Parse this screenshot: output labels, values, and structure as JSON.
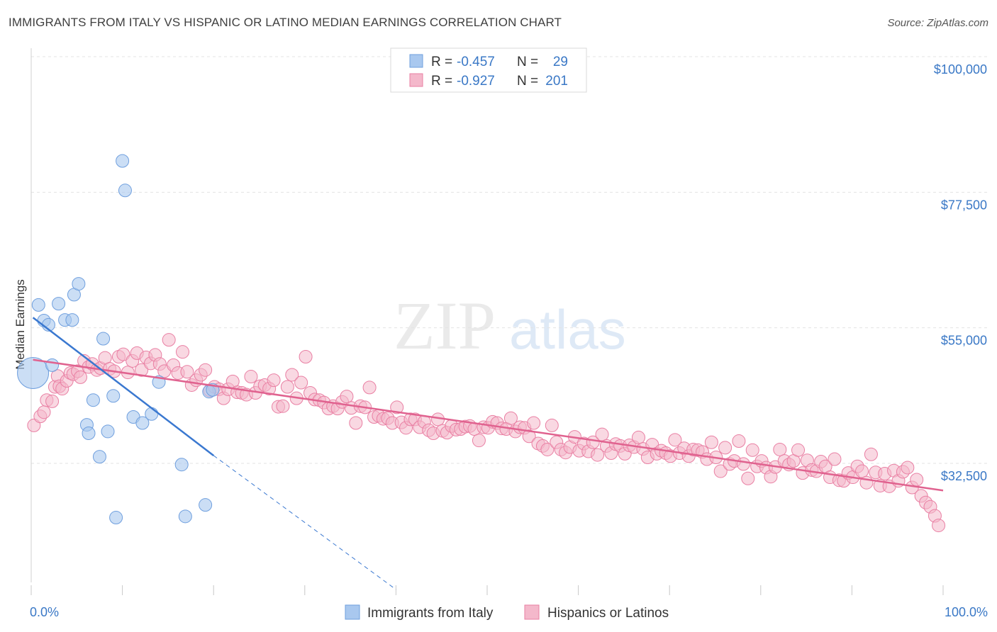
{
  "title": "IMMIGRANTS FROM ITALY VS HISPANIC OR LATINO MEDIAN EARNINGS CORRELATION CHART",
  "source": "Source: ZipAtlas.com",
  "watermark": {
    "zip": "ZIP",
    "atlas": "atlas"
  },
  "colors": {
    "blue": "#a9c8ef",
    "blue_stroke": "#6f9fde",
    "blue_line": "#3a78d0",
    "pink": "#f4b8cb",
    "pink_stroke": "#e97fa3",
    "pink_line": "#e0628f",
    "axis_text": "#3a78c6",
    "grid": "#e3e3e3"
  },
  "legend": {
    "rows": [
      {
        "r_label": "R =",
        "r_value": "-0.457",
        "n_label": "N =",
        "n_value": "29"
      },
      {
        "r_label": "R =",
        "r_value": "-0.927",
        "n_label": "N =",
        "n_value": "201"
      }
    ]
  },
  "chart_data": {
    "type": "scatter",
    "xlabel": "",
    "ylabel": "Median Earnings",
    "xlim": [
      0,
      100
    ],
    "ylim": [
      17000,
      104000
    ],
    "x_tick_labels": [
      "0.0%",
      "100.0%"
    ],
    "y_ticks": [
      32500,
      55000,
      77500,
      100000
    ],
    "y_tick_labels": [
      "$32,500",
      "$55,000",
      "$77,500",
      "$100,000"
    ],
    "grid": true,
    "legend_position": "top-center",
    "series": [
      {
        "name": "Immigrants from Italy",
        "color": "blue",
        "trend": {
          "x0": 0.2,
          "y0": 56700,
          "x1": 20,
          "y1": 33800,
          "dash_to_x": 40,
          "dash_to_y": 17000
        },
        "points": [
          [
            0.2,
            47500,
            22
          ],
          [
            0.8,
            58800,
            9
          ],
          [
            1.4,
            56200,
            9
          ],
          [
            1.9,
            55500,
            9
          ],
          [
            2.3,
            48800,
            9
          ],
          [
            3.0,
            59000,
            9
          ],
          [
            3.7,
            56300,
            9
          ],
          [
            4.5,
            56300,
            9
          ],
          [
            4.7,
            60500,
            9
          ],
          [
            5.2,
            62300,
            9
          ],
          [
            6.1,
            38900,
            9
          ],
          [
            6.3,
            37500,
            9
          ],
          [
            6.8,
            43000,
            9
          ],
          [
            7.5,
            33600,
            9
          ],
          [
            7.9,
            53200,
            9
          ],
          [
            8.4,
            37800,
            9
          ],
          [
            9.0,
            43700,
            9
          ],
          [
            9.3,
            23500,
            9
          ],
          [
            10.0,
            82700,
            9
          ],
          [
            10.3,
            77800,
            9
          ],
          [
            11.2,
            40200,
            9
          ],
          [
            12.2,
            39200,
            9
          ],
          [
            13.2,
            40700,
            9
          ],
          [
            14.0,
            46000,
            9
          ],
          [
            16.5,
            32300,
            9
          ],
          [
            16.9,
            23700,
            9
          ],
          [
            19.5,
            44400,
            9
          ],
          [
            19.9,
            44700,
            9
          ],
          [
            19.1,
            25600,
            9
          ]
        ]
      },
      {
        "name": "Hispanics or Latinos",
        "color": "pink",
        "trend": {
          "x0": 0.2,
          "y0": 49700,
          "x1": 100,
          "y1": 28000
        },
        "points": [
          [
            0.3,
            38800
          ],
          [
            1.0,
            40300
          ],
          [
            1.4,
            41000
          ],
          [
            1.7,
            43000
          ],
          [
            2.3,
            42800
          ],
          [
            2.6,
            45200
          ],
          [
            2.9,
            47000
          ],
          [
            3.1,
            45300
          ],
          [
            3.4,
            44900
          ],
          [
            3.9,
            46200
          ],
          [
            4.3,
            47500
          ],
          [
            4.6,
            47300
          ],
          [
            5.1,
            47800
          ],
          [
            5.4,
            46800
          ],
          [
            5.8,
            49500
          ],
          [
            6.3,
            48500
          ],
          [
            6.7,
            49000
          ],
          [
            7.2,
            48000
          ],
          [
            7.6,
            48300
          ],
          [
            8.1,
            50000
          ],
          [
            8.6,
            48200
          ],
          [
            9.1,
            47800
          ],
          [
            9.6,
            50200
          ],
          [
            10.1,
            50600
          ],
          [
            10.6,
            47600
          ],
          [
            11.1,
            49500
          ],
          [
            11.6,
            50800
          ],
          [
            12.1,
            48000
          ],
          [
            12.6,
            50100
          ],
          [
            13.1,
            49100
          ],
          [
            13.6,
            50500
          ],
          [
            14.1,
            49000
          ],
          [
            14.6,
            47800
          ],
          [
            15.1,
            53000
          ],
          [
            15.6,
            48800
          ],
          [
            16.1,
            47500
          ],
          [
            16.6,
            51000
          ],
          [
            17.1,
            47700
          ],
          [
            17.6,
            45500
          ],
          [
            18.1,
            46300
          ],
          [
            18.6,
            47200
          ],
          [
            19.1,
            48000
          ],
          [
            19.6,
            44600
          ],
          [
            20.1,
            45200
          ],
          [
            20.6,
            44800
          ],
          [
            21.1,
            43300
          ],
          [
            21.6,
            44800
          ],
          [
            22.1,
            46100
          ],
          [
            22.6,
            44300
          ],
          [
            23.1,
            44200
          ],
          [
            23.6,
            43900
          ],
          [
            24.1,
            46900
          ],
          [
            24.6,
            44200
          ],
          [
            25.1,
            45300
          ],
          [
            25.6,
            45500
          ],
          [
            26.1,
            44900
          ],
          [
            26.6,
            46300
          ],
          [
            27.1,
            41900
          ],
          [
            27.6,
            42000
          ],
          [
            28.1,
            45200
          ],
          [
            28.6,
            47200
          ],
          [
            29.1,
            43300
          ],
          [
            29.6,
            45900
          ],
          [
            30.1,
            50200
          ],
          [
            30.6,
            44200
          ],
          [
            31.1,
            43100
          ],
          [
            31.6,
            43000
          ],
          [
            32.1,
            42600
          ],
          [
            32.6,
            41600
          ],
          [
            33.1,
            42000
          ],
          [
            33.6,
            41600
          ],
          [
            34.1,
            42700
          ],
          [
            34.6,
            43600
          ],
          [
            35.1,
            41700
          ],
          [
            35.6,
            39200
          ],
          [
            36.1,
            42000
          ],
          [
            36.6,
            41800
          ],
          [
            37.1,
            45100
          ],
          [
            37.6,
            40200
          ],
          [
            38.1,
            40400
          ],
          [
            38.6,
            39900
          ],
          [
            39.1,
            40000
          ],
          [
            39.6,
            39200
          ],
          [
            40.1,
            41800
          ],
          [
            40.6,
            39300
          ],
          [
            41.1,
            38400
          ],
          [
            41.6,
            39800
          ],
          [
            42.1,
            39800
          ],
          [
            42.6,
            38500
          ],
          [
            43.1,
            39400
          ],
          [
            43.6,
            38000
          ],
          [
            44.1,
            37500
          ],
          [
            44.6,
            39800
          ],
          [
            45.1,
            37900
          ],
          [
            45.6,
            37600
          ],
          [
            46.1,
            38700
          ],
          [
            46.6,
            38100
          ],
          [
            47.1,
            38200
          ],
          [
            47.6,
            38600
          ],
          [
            48.1,
            38700
          ],
          [
            48.6,
            38200
          ],
          [
            49.1,
            36300
          ],
          [
            49.6,
            38500
          ],
          [
            50.1,
            38400
          ],
          [
            50.6,
            39400
          ],
          [
            51.1,
            39200
          ],
          [
            51.6,
            38300
          ],
          [
            52.1,
            38200
          ],
          [
            52.6,
            40000
          ],
          [
            53.1,
            37800
          ],
          [
            53.6,
            38500
          ],
          [
            54.1,
            38400
          ],
          [
            54.6,
            37000
          ],
          [
            55.1,
            39200
          ],
          [
            55.6,
            35800
          ],
          [
            56.1,
            35400
          ],
          [
            56.6,
            34800
          ],
          [
            57.1,
            38800
          ],
          [
            57.6,
            36000
          ],
          [
            58.1,
            34800
          ],
          [
            58.6,
            34300
          ],
          [
            59.1,
            35200
          ],
          [
            59.6,
            36900
          ],
          [
            60.1,
            34600
          ],
          [
            60.6,
            35800
          ],
          [
            61.1,
            34500
          ],
          [
            61.6,
            36000
          ],
          [
            62.1,
            33900
          ],
          [
            62.6,
            37300
          ],
          [
            63.1,
            35400
          ],
          [
            63.6,
            34200
          ],
          [
            64.1,
            35700
          ],
          [
            64.6,
            35400
          ],
          [
            65.1,
            34100
          ],
          [
            65.6,
            35500
          ],
          [
            66.1,
            35200
          ],
          [
            66.6,
            36800
          ],
          [
            67.1,
            34900
          ],
          [
            67.6,
            33500
          ],
          [
            68.1,
            35600
          ],
          [
            68.6,
            34100
          ],
          [
            69.1,
            34600
          ],
          [
            69.6,
            34200
          ],
          [
            70.1,
            33700
          ],
          [
            70.6,
            36400
          ],
          [
            71.1,
            34200
          ],
          [
            71.6,
            35000
          ],
          [
            72.1,
            33700
          ],
          [
            72.6,
            34800
          ],
          [
            73.1,
            34700
          ],
          [
            73.6,
            34400
          ],
          [
            74.1,
            33200
          ],
          [
            74.6,
            36000
          ],
          [
            75.1,
            33500
          ],
          [
            75.6,
            31200
          ],
          [
            76.1,
            35100
          ],
          [
            76.6,
            32400
          ],
          [
            77.1,
            32900
          ],
          [
            77.6,
            36200
          ],
          [
            78.1,
            32400
          ],
          [
            78.6,
            30000
          ],
          [
            79.1,
            34700
          ],
          [
            79.6,
            32000
          ],
          [
            80.1,
            32900
          ],
          [
            80.6,
            31800
          ],
          [
            81.1,
            30300
          ],
          [
            81.6,
            31900
          ],
          [
            82.1,
            34800
          ],
          [
            82.6,
            32900
          ],
          [
            83.1,
            32300
          ],
          [
            83.6,
            32900
          ],
          [
            84.1,
            34700
          ],
          [
            84.6,
            30900
          ],
          [
            85.1,
            33000
          ],
          [
            85.6,
            31400
          ],
          [
            86.1,
            31200
          ],
          [
            86.6,
            32800
          ],
          [
            87.1,
            32000
          ],
          [
            87.6,
            30200
          ],
          [
            88.1,
            33200
          ],
          [
            88.6,
            29700
          ],
          [
            89.1,
            29600
          ],
          [
            89.6,
            30900
          ],
          [
            90.1,
            30200
          ],
          [
            90.6,
            32000
          ],
          [
            91.1,
            31200
          ],
          [
            91.6,
            29300
          ],
          [
            92.1,
            34000
          ],
          [
            92.6,
            31000
          ],
          [
            93.1,
            28800
          ],
          [
            93.6,
            30800
          ],
          [
            94.1,
            28700
          ],
          [
            94.6,
            31300
          ],
          [
            95.1,
            29600
          ],
          [
            95.6,
            31100
          ],
          [
            96.1,
            31800
          ],
          [
            96.6,
            28500
          ],
          [
            97.1,
            29800
          ],
          [
            97.6,
            27100
          ],
          [
            98.1,
            26000
          ],
          [
            98.6,
            25300
          ],
          [
            99.1,
            23800
          ],
          [
            99.5,
            22200
          ]
        ]
      }
    ]
  },
  "bottom_legend": [
    "Immigrants from Italy",
    "Hispanics or Latinos"
  ]
}
